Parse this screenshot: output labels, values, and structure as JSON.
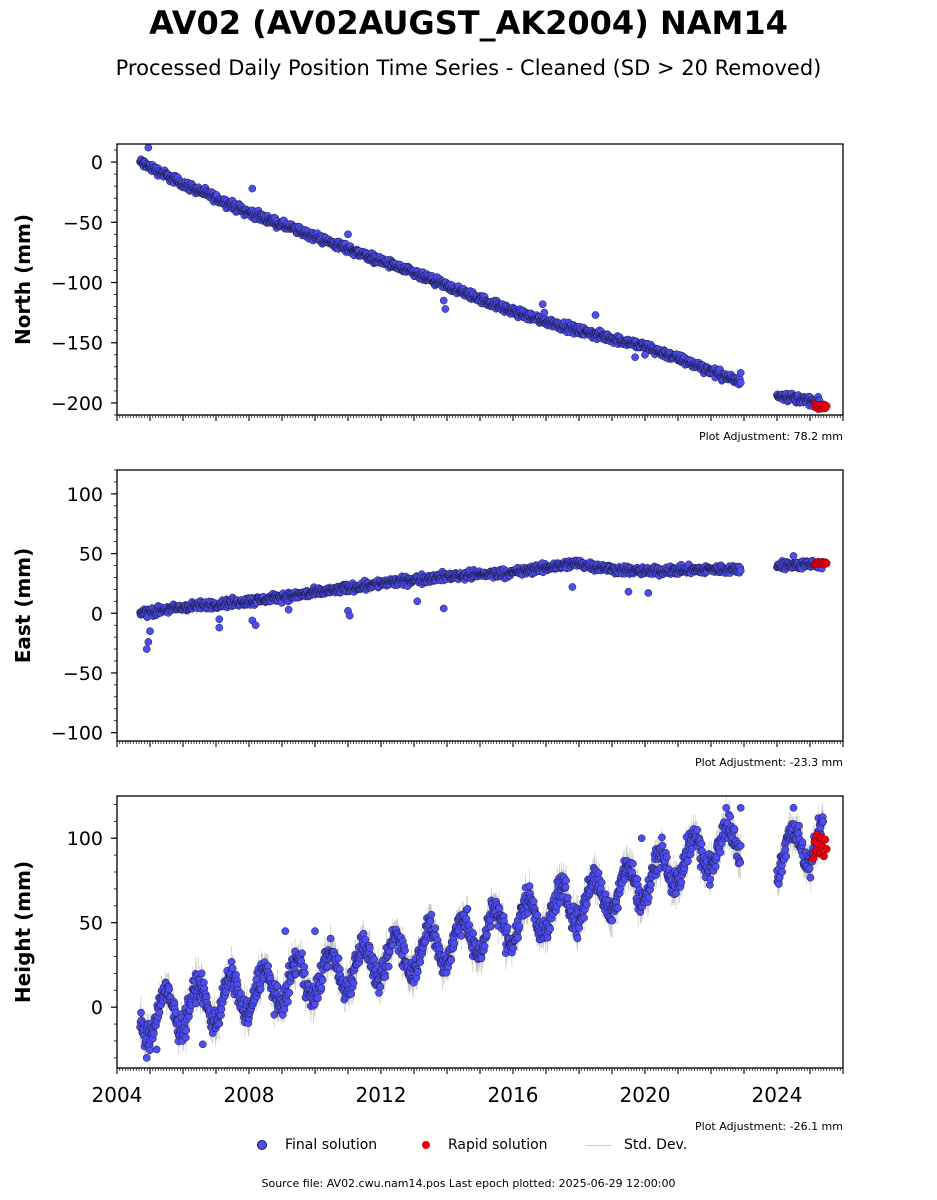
{
  "title": "AV02 (AV02AUGST_AK2004) NAM14",
  "subtitle": "Processed Daily Position Time Series - Cleaned (SD > 20 Removed)",
  "legend": {
    "final": "Final solution",
    "rapid": "Rapid solution",
    "std": "Std. Dev."
  },
  "source_text": "Source file: AV02.cwu.nam14.pos  Last epoch plotted: 2025-06-29 12:00:00",
  "colors": {
    "final": "#4d4df0",
    "final_edge": "#1a1a40",
    "rapid": "#e8000b",
    "std": "#b0b0b0"
  },
  "chart_data": [
    {
      "type": "scatter",
      "ylabel": "North (mm)",
      "xlim": [
        2004.0,
        2026.0
      ],
      "ylim": [
        -210,
        15
      ],
      "yticks": [
        0,
        -50,
        -100,
        -150,
        -200
      ],
      "ytick_labels": [
        "0",
        "−50",
        "−100",
        "−150",
        "−200"
      ],
      "adjustment": "Plot Adjustment: 78.2 mm",
      "series": [
        {
          "name": "Final solution",
          "segments": [
            {
              "x": [
                2004.7,
                2006.0,
                2008.0,
                2010.0,
                2012.0,
                2014.0,
                2016.0,
                2018.0,
                2020.0,
                2021.5,
                2022.9
              ],
              "y": [
                0,
                -18,
                -42,
                -62,
                -82,
                -103,
                -124,
                -140,
                -153,
                -168,
                -183
              ]
            },
            {
              "x": [
                2024.0,
                2025.3
              ],
              "y": [
                -193,
                -200
              ]
            }
          ],
          "noise": 3,
          "outliers": [
            [
              2004.95,
              12
            ],
            [
              2008.1,
              -22
            ],
            [
              2011.0,
              -60
            ],
            [
              2013.9,
              -115
            ],
            [
              2013.95,
              -122
            ],
            [
              2016.9,
              -118
            ],
            [
              2016.95,
              -125
            ],
            [
              2018.5,
              -127
            ],
            [
              2019.7,
              -162
            ],
            [
              2020.0,
              -160
            ],
            [
              2022.9,
              -175
            ]
          ]
        },
        {
          "name": "Rapid solution",
          "x": [
            2025.15,
            2025.5
          ],
          "y": [
            -201,
            -205
          ]
        }
      ]
    },
    {
      "type": "scatter",
      "ylabel": "East (mm)",
      "xlim": [
        2004.0,
        2026.0
      ],
      "ylim": [
        -107,
        120
      ],
      "yticks": [
        100,
        50,
        0,
        -50,
        -100
      ],
      "ytick_labels": [
        "100",
        "50",
        "0",
        "−50",
        "−100"
      ],
      "adjustment": "Plot Adjustment: -23.3 mm",
      "series": [
        {
          "name": "Final solution",
          "segments": [
            {
              "x": [
                2004.7,
                2006.0,
                2008.0,
                2010.0,
                2012.0,
                2014.0,
                2016.0,
                2017.9,
                2019.0,
                2020.0,
                2021.0,
                2022.9
              ],
              "y": [
                0,
                5,
                10,
                17,
                25,
                31,
                34,
                42,
                37,
                35,
                36,
                37
              ]
            },
            {
              "x": [
                2024.0,
                2025.4
              ],
              "y": [
                40,
                41
              ]
            }
          ],
          "noise": 3,
          "outliers": [
            [
              2004.9,
              -30
            ],
            [
              2004.95,
              -24
            ],
            [
              2005.0,
              -15
            ],
            [
              2007.1,
              -5
            ],
            [
              2007.1,
              -12
            ],
            [
              2008.1,
              -6
            ],
            [
              2008.2,
              -10
            ],
            [
              2009.2,
              3
            ],
            [
              2011.0,
              2
            ],
            [
              2011.05,
              -2
            ],
            [
              2013.1,
              10
            ],
            [
              2013.9,
              4
            ],
            [
              2017.8,
              22
            ],
            [
              2019.5,
              18
            ],
            [
              2020.1,
              17
            ],
            [
              2024.5,
              48
            ]
          ]
        },
        {
          "name": "Rapid solution",
          "x": [
            2025.15,
            2025.5
          ],
          "y": [
            41,
            43
          ]
        }
      ]
    },
    {
      "type": "scatter",
      "ylabel": "Height (mm)",
      "xlabel": "",
      "xlim": [
        2004.0,
        2026.0
      ],
      "ylim": [
        -36,
        125
      ],
      "yticks": [
        100,
        50,
        0
      ],
      "ytick_labels": [
        "100",
        "50",
        "0"
      ],
      "xticks": [
        2004,
        2008,
        2012,
        2016,
        2020,
        2024
      ],
      "xtick_labels": [
        "2004",
        "2008",
        "2012",
        "2016",
        "2020",
        "2024"
      ],
      "adjustment": "Plot Adjustment: -26.1 mm",
      "series": [
        {
          "name": "Final solution",
          "segments": [
            {
              "x": [
                2004.7,
                2006.0,
                2008.0,
                2010.0,
                2012.0,
                2014.0,
                2016.0,
                2018.0,
                2020.0,
                2021.5,
                2022.9
              ],
              "y": [
                -8,
                0,
                8,
                18,
                28,
                38,
                50,
                62,
                75,
                90,
                100
              ]
            },
            {
              "x": [
                2024.0,
                2025.4
              ],
              "y": [
                90,
                100
              ]
            }
          ],
          "noise": 7,
          "seasonal": 12,
          "outliers": [
            [
              2004.9,
              -30
            ],
            [
              2005.2,
              -25
            ],
            [
              2006.6,
              -22
            ],
            [
              2009.1,
              45
            ],
            [
              2010.0,
              45
            ],
            [
              2019.9,
              100
            ],
            [
              2022.9,
              118
            ],
            [
              2024.5,
              118
            ]
          ]
        },
        {
          "name": "Rapid solution",
          "x": [
            2025.1,
            2025.5
          ],
          "y": [
            88,
            102
          ]
        }
      ]
    }
  ]
}
